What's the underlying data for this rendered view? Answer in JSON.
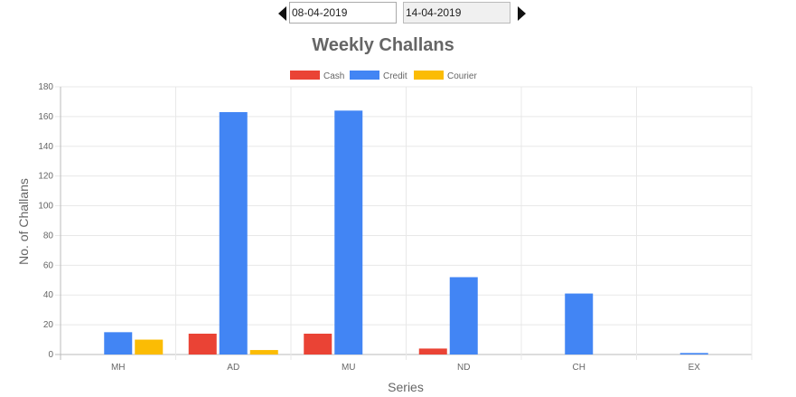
{
  "date_range": {
    "from": "08-04-2019",
    "to": "14-04-2019"
  },
  "chart_data": {
    "type": "bar",
    "title": "Weekly Challans",
    "xlabel": "Series",
    "ylabel": "No. of Challans",
    "categories": [
      "MH",
      "AD",
      "MU",
      "ND",
      "CH",
      "EX"
    ],
    "series": [
      {
        "name": "Cash",
        "color": "#ea4335",
        "values": [
          0,
          14,
          14,
          4,
          0,
          0
        ]
      },
      {
        "name": "Credit",
        "color": "#4285f4",
        "values": [
          15,
          163,
          164,
          52,
          41,
          1
        ]
      },
      {
        "name": "Courier",
        "color": "#fbbc04",
        "values": [
          10,
          3,
          0,
          0,
          0,
          0
        ]
      }
    ],
    "ylim": [
      0,
      180
    ],
    "yticks": [
      "0",
      "20",
      "40",
      "60",
      "80",
      "100",
      "120",
      "140",
      "160",
      "180"
    ],
    "grid": true,
    "legend": "top-center"
  }
}
